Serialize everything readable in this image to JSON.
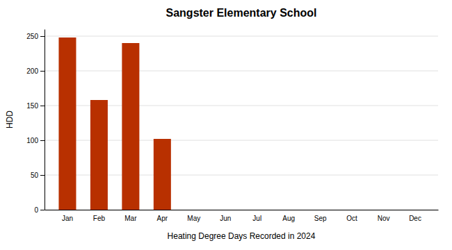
{
  "chart_data": {
    "type": "bar",
    "title": "Sangster Elementary School",
    "xlabel": "Heating Degree Days Recorded in 2024",
    "ylabel": "HDD",
    "categories": [
      "Jan",
      "Feb",
      "Mar",
      "Apr",
      "May",
      "Jun",
      "Jul",
      "Aug",
      "Sep",
      "Oct",
      "Nov",
      "Dec"
    ],
    "values": [
      248,
      158,
      240,
      102,
      0,
      0,
      0,
      0,
      0,
      0,
      0,
      0
    ],
    "color": "#b83000",
    "ylim": [
      0,
      260
    ],
    "yticks": [
      0,
      50,
      100,
      150,
      200,
      250
    ],
    "grid": true
  }
}
